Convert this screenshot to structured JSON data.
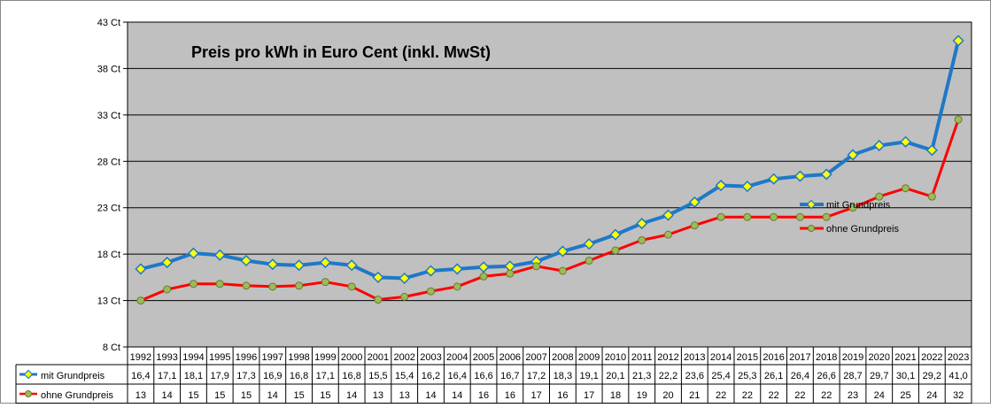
{
  "chart_data": {
    "type": "line",
    "title": "Preis pro kWh in Euro Cent (inkl. MwSt)",
    "categories": [
      "1992",
      "1993",
      "1994",
      "1995",
      "1996",
      "1997",
      "1998",
      "1999",
      "2000",
      "2001",
      "2002",
      "2003",
      "2004",
      "2005",
      "2006",
      "2007",
      "2008",
      "2009",
      "2010",
      "2011",
      "2012",
      "2013",
      "2014",
      "2015",
      "2016",
      "2017",
      "2018",
      "2019",
      "2020",
      "2021",
      "2022",
      "2023"
    ],
    "ylim": [
      8,
      43
    ],
    "yticks": [
      "8 Ct",
      "13 Ct",
      "18 Ct",
      "23 Ct",
      "28 Ct",
      "33 Ct",
      "38 Ct",
      "43 Ct"
    ],
    "grid": true,
    "legend_position": "right",
    "series": [
      {
        "name": "mit Grundpreis",
        "color": "#1f78c8",
        "marker": "diamond",
        "marker_color": "#ffff00",
        "values": [
          16.4,
          17.1,
          18.1,
          17.9,
          17.3,
          16.9,
          16.8,
          17.1,
          16.8,
          15.5,
          15.4,
          16.2,
          16.4,
          16.6,
          16.7,
          17.2,
          18.3,
          19.1,
          20.1,
          21.3,
          22.2,
          23.6,
          25.4,
          25.3,
          26.1,
          26.4,
          26.6,
          28.7,
          29.7,
          30.1,
          29.2,
          41.0
        ],
        "labels": [
          "16,4",
          "17,1",
          "18,1",
          "17,9",
          "17,3",
          "16,9",
          "16,8",
          "17,1",
          "16,8",
          "15,5",
          "15,4",
          "16,2",
          "16,4",
          "16,6",
          "16,7",
          "17,2",
          "18,3",
          "19,1",
          "20,1",
          "21,3",
          "22,2",
          "23,6",
          "25,4",
          "25,3",
          "26,1",
          "26,4",
          "26,6",
          "28,7",
          "29,7",
          "30,1",
          "29,2",
          "41,0"
        ]
      },
      {
        "name": "ohne Grundpreis",
        "color": "#ff0000",
        "marker": "circle",
        "marker_color": "#9bbb59",
        "values": [
          13.0,
          14.2,
          14.8,
          14.8,
          14.6,
          14.5,
          14.6,
          15.0,
          14.5,
          13.1,
          13.4,
          14.0,
          14.5,
          15.6,
          15.9,
          16.7,
          16.2,
          17.3,
          18.4,
          19.5,
          20.1,
          21.1,
          22.0,
          22.0,
          22.0,
          22.0,
          22.0,
          23.0,
          24.2,
          25.1,
          24.2,
          32.5
        ],
        "labels": [
          "13",
          "14",
          "15",
          "15",
          "15",
          "14",
          "15",
          "15",
          "14",
          "13",
          "13",
          "14",
          "14",
          "16",
          "16",
          "17",
          "16",
          "17",
          "18",
          "19",
          "20",
          "21",
          "22",
          "22",
          "22",
          "22",
          "22",
          "23",
          "24",
          "25",
          "24",
          "32"
        ]
      }
    ]
  }
}
